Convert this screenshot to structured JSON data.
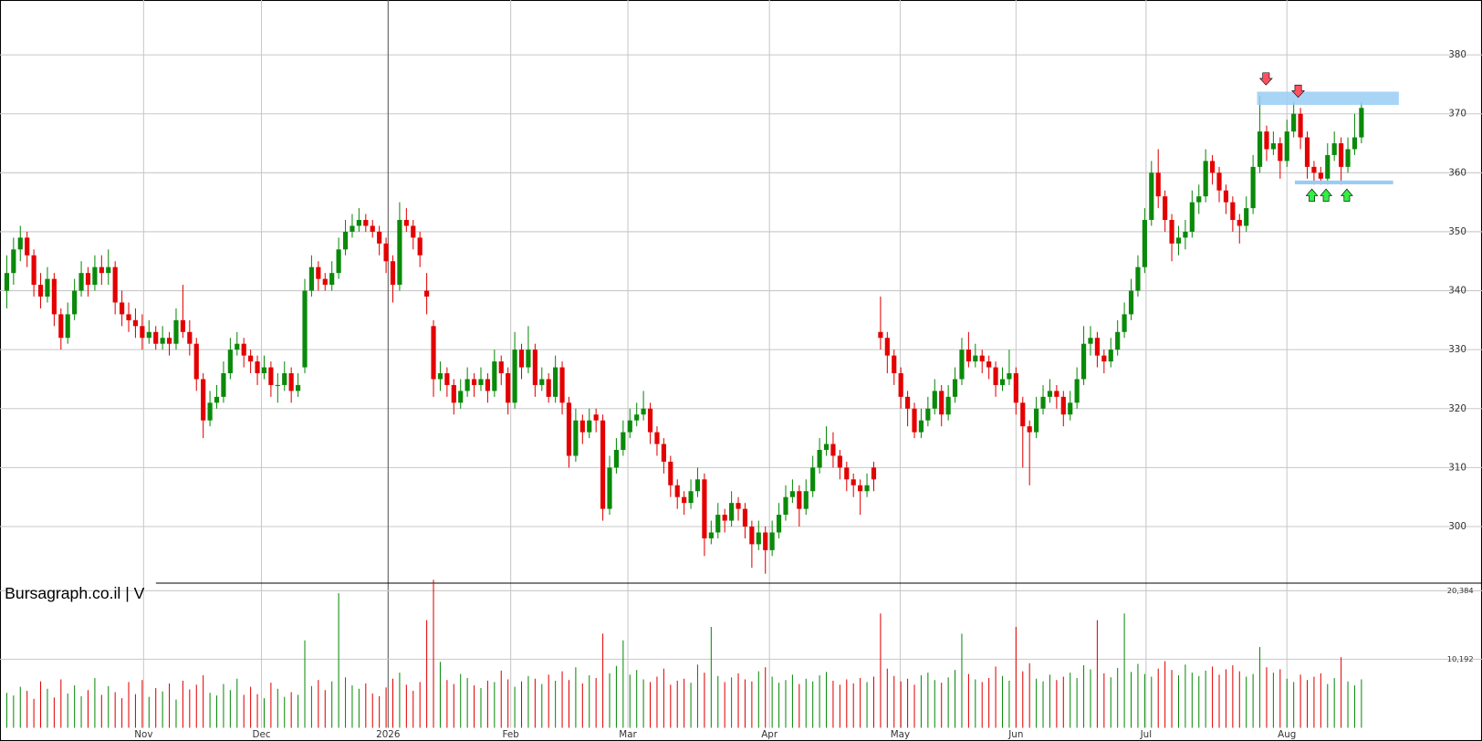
{
  "chart_data": {
    "type": "candlestick",
    "title": "Bursagraph.co.il | V",
    "up_color": "#0a8a0a",
    "down_color": "#e40000",
    "grid": true,
    "ylim": [
      290.4,
      389.3
    ],
    "yticks": [
      300,
      310,
      320,
      330,
      340,
      350,
      360,
      370,
      380
    ],
    "xlim": [
      -1,
      217.8
    ],
    "xticks": [
      {
        "value": 20.2,
        "label": "Nov"
      },
      {
        "value": 37.6,
        "label": "Dec"
      },
      {
        "value": 56.3,
        "label": "2026"
      },
      {
        "value": 74.4,
        "label": "Feb"
      },
      {
        "value": 91.7,
        "label": "Mar"
      },
      {
        "value": 112.6,
        "label": "Apr"
      },
      {
        "value": 131.9,
        "label": "May"
      },
      {
        "value": 149,
        "label": "Jun"
      },
      {
        "value": 168.2,
        "label": "Jul"
      },
      {
        "value": 189,
        "label": "Aug"
      }
    ],
    "ohlc": [
      [
        340,
        346,
        337,
        343
      ],
      [
        343,
        349,
        341,
        347
      ],
      [
        347,
        351,
        345,
        349
      ],
      [
        349,
        350,
        344,
        346
      ],
      [
        346,
        347,
        339,
        341
      ],
      [
        341,
        343,
        337,
        339
      ],
      [
        339,
        344,
        338,
        342
      ],
      [
        342,
        343,
        334,
        336
      ],
      [
        336,
        337,
        330,
        332
      ],
      [
        332,
        338,
        331,
        336
      ],
      [
        336,
        342,
        335,
        340
      ],
      [
        340,
        345,
        339,
        343
      ],
      [
        343,
        344,
        339,
        341
      ],
      [
        341,
        346,
        340,
        344
      ],
      [
        344,
        346,
        341,
        343
      ],
      [
        343,
        347,
        341,
        344
      ],
      [
        344,
        345,
        336,
        338
      ],
      [
        338,
        340,
        334,
        336
      ],
      [
        336,
        338,
        333,
        335
      ],
      [
        335,
        337,
        332,
        334
      ],
      [
        334,
        336,
        330,
        332
      ],
      [
        332,
        335,
        331,
        333
      ],
      [
        333,
        334,
        330,
        331
      ],
      [
        331,
        334,
        330,
        332
      ],
      [
        332,
        333,
        329,
        331
      ],
      [
        331,
        337,
        330,
        335
      ],
      [
        335,
        341,
        332,
        333
      ],
      [
        333,
        335,
        329,
        331
      ],
      [
        331,
        332,
        323,
        325
      ],
      [
        325,
        326,
        315,
        318
      ],
      [
        318,
        323,
        317,
        321
      ],
      [
        321,
        324,
        320,
        322
      ],
      [
        322,
        328,
        321,
        326
      ],
      [
        326,
        332,
        325,
        330
      ],
      [
        330,
        333,
        329,
        331
      ],
      [
        331,
        332,
        327,
        329
      ],
      [
        329,
        330,
        326,
        328
      ],
      [
        328,
        329,
        324,
        326
      ],
      [
        326,
        329,
        325,
        327
      ],
      [
        327,
        328,
        322,
        324
      ],
      [
        324,
        326,
        321,
        324
      ],
      [
        324,
        328,
        323,
        326
      ],
      [
        326,
        327,
        321,
        323
      ],
      [
        323,
        326,
        322,
        324
      ],
      [
        327,
        342,
        326,
        340
      ],
      [
        340,
        346,
        339,
        344
      ],
      [
        344,
        345,
        340,
        342
      ],
      [
        342,
        343,
        340,
        341
      ],
      [
        341,
        345,
        340,
        343
      ],
      [
        343,
        349,
        342,
        347
      ],
      [
        347,
        352,
        346,
        350
      ],
      [
        350,
        353,
        349,
        351
      ],
      [
        351,
        354,
        350,
        352
      ],
      [
        352,
        353,
        350,
        351
      ],
      [
        351,
        352,
        349,
        350
      ],
      [
        350,
        351,
        346,
        348
      ],
      [
        348,
        349,
        343,
        345
      ],
      [
        345,
        346,
        338,
        341
      ],
      [
        341,
        355,
        340,
        352
      ],
      [
        352,
        354,
        350,
        351
      ],
      [
        351,
        352,
        347,
        349
      ],
      [
        349,
        350,
        344,
        346
      ],
      [
        340,
        343,
        336,
        339
      ],
      [
        334,
        335,
        322,
        325
      ],
      [
        325,
        328,
        323,
        326
      ],
      [
        326,
        327,
        322,
        324
      ],
      [
        324,
        325,
        319,
        321
      ],
      [
        321,
        325,
        320,
        323
      ],
      [
        323,
        327,
        322,
        325
      ],
      [
        325,
        326,
        322,
        324
      ],
      [
        324,
        327,
        323,
        325
      ],
      [
        325,
        326,
        321,
        323
      ],
      [
        323,
        330,
        322,
        328
      ],
      [
        328,
        329,
        324,
        326
      ],
      [
        326,
        327,
        319,
        321
      ],
      [
        321,
        333,
        320,
        330
      ],
      [
        330,
        331,
        325,
        327
      ],
      [
        327,
        334,
        326,
        330
      ],
      [
        330,
        331,
        322,
        324
      ],
      [
        324,
        327,
        323,
        325
      ],
      [
        325,
        326,
        321,
        322
      ],
      [
        322,
        329,
        321,
        327
      ],
      [
        327,
        328,
        319,
        321
      ],
      [
        321,
        322,
        310,
        312
      ],
      [
        312,
        320,
        311,
        318
      ],
      [
        318,
        319,
        314,
        316
      ],
      [
        316,
        320,
        315,
        318
      ],
      [
        319,
        320,
        316,
        318
      ],
      [
        318,
        319,
        301,
        303
      ],
      [
        303,
        312,
        302,
        310
      ],
      [
        310,
        315,
        309,
        313
      ],
      [
        313,
        318,
        312,
        316
      ],
      [
        316,
        320,
        315,
        318
      ],
      [
        318,
        321,
        317,
        319
      ],
      [
        319,
        323,
        318,
        320
      ],
      [
        320,
        321,
        314,
        316
      ],
      [
        316,
        317,
        312,
        314
      ],
      [
        314,
        315,
        309,
        311
      ],
      [
        311,
        312,
        305,
        307
      ],
      [
        307,
        308,
        303,
        305
      ],
      [
        305,
        306,
        302,
        304
      ],
      [
        304,
        308,
        303,
        306
      ],
      [
        306,
        310,
        305,
        308
      ],
      [
        308,
        309,
        295,
        298
      ],
      [
        298,
        301,
        297,
        299
      ],
      [
        299,
        304,
        298,
        302
      ],
      [
        302,
        303,
        299,
        301
      ],
      [
        301,
        306,
        300,
        304
      ],
      [
        304,
        305,
        301,
        303
      ],
      [
        303,
        304,
        298,
        300
      ],
      [
        300,
        301,
        293,
        297
      ],
      [
        297,
        301,
        296,
        299
      ],
      [
        299,
        300,
        292,
        296
      ],
      [
        296,
        301,
        295,
        299
      ],
      [
        299,
        304,
        298,
        302
      ],
      [
        302,
        307,
        301,
        305
      ],
      [
        305,
        308,
        304,
        306
      ],
      [
        306,
        307,
        300,
        303
      ],
      [
        303,
        308,
        302,
        306
      ],
      [
        306,
        312,
        305,
        310
      ],
      [
        310,
        315,
        309,
        313
      ],
      [
        313,
        317,
        312,
        314
      ],
      [
        314,
        316,
        310,
        312
      ],
      [
        312,
        313,
        308,
        310
      ],
      [
        310,
        311,
        306,
        308
      ],
      [
        308,
        309,
        305,
        307
      ],
      [
        307,
        308,
        302,
        306
      ],
      [
        306,
        309,
        305,
        307
      ],
      [
        310,
        311,
        306,
        308
      ],
      [
        333,
        339,
        330,
        332
      ],
      [
        332,
        333,
        326,
        329
      ],
      [
        329,
        330,
        324,
        326
      ],
      [
        326,
        327,
        320,
        322
      ],
      [
        322,
        323,
        317,
        320
      ],
      [
        320,
        321,
        315,
        316
      ],
      [
        316,
        320,
        315,
        318
      ],
      [
        318,
        322,
        317,
        320
      ],
      [
        320,
        325,
        319,
        323
      ],
      [
        323,
        324,
        317,
        319
      ],
      [
        319,
        324,
        318,
        322
      ],
      [
        322,
        327,
        321,
        325
      ],
      [
        325,
        332,
        324,
        330
      ],
      [
        330,
        333,
        327,
        328
      ],
      [
        328,
        331,
        327,
        329
      ],
      [
        329,
        330,
        326,
        328
      ],
      [
        328,
        329,
        325,
        327
      ],
      [
        327,
        328,
        322,
        324
      ],
      [
        324,
        327,
        323,
        325
      ],
      [
        325,
        330,
        324,
        326
      ],
      [
        326,
        327,
        319,
        321
      ],
      [
        321,
        322,
        310,
        317
      ],
      [
        317,
        318,
        307,
        316
      ],
      [
        316,
        322,
        315,
        320
      ],
      [
        320,
        324,
        319,
        322
      ],
      [
        322,
        325,
        321,
        323
      ],
      [
        323,
        324,
        320,
        322
      ],
      [
        322,
        323,
        317,
        319
      ],
      [
        319,
        323,
        318,
        321
      ],
      [
        321,
        327,
        320,
        325
      ],
      [
        325,
        334,
        324,
        331
      ],
      [
        331,
        334,
        329,
        332
      ],
      [
        332,
        333,
        327,
        329
      ],
      [
        329,
        330,
        326,
        328
      ],
      [
        328,
        332,
        327,
        330
      ],
      [
        330,
        335,
        329,
        333
      ],
      [
        333,
        338,
        332,
        336
      ],
      [
        336,
        342,
        335,
        340
      ],
      [
        340,
        346,
        339,
        344
      ],
      [
        344,
        354,
        343,
        352
      ],
      [
        352,
        362,
        351,
        360
      ],
      [
        360,
        364,
        354,
        356
      ],
      [
        356,
        357,
        350,
        352
      ],
      [
        352,
        353,
        345,
        348
      ],
      [
        348,
        351,
        346,
        349
      ],
      [
        349,
        352,
        347,
        350
      ],
      [
        350,
        357,
        349,
        355
      ],
      [
        355,
        358,
        353,
        356
      ],
      [
        356,
        364,
        355,
        362
      ],
      [
        362,
        363,
        358,
        360
      ],
      [
        360,
        361,
        355,
        357
      ],
      [
        357,
        358,
        353,
        355
      ],
      [
        355,
        356,
        350,
        352
      ],
      [
        352,
        353,
        348,
        351
      ],
      [
        351,
        356,
        350,
        354
      ],
      [
        354,
        363,
        353,
        361
      ],
      [
        361,
        373,
        360,
        367
      ],
      [
        367,
        368,
        362,
        364
      ],
      [
        364,
        367,
        363,
        365
      ],
      [
        365,
        366,
        359,
        362
      ],
      [
        362,
        369,
        361,
        367
      ],
      [
        367,
        372,
        366,
        370
      ],
      [
        370,
        371,
        364,
        366
      ],
      [
        366,
        367,
        359,
        361
      ],
      [
        361,
        362,
        358,
        360
      ],
      [
        360,
        361,
        358,
        359
      ],
      [
        359,
        365,
        358,
        363
      ],
      [
        363,
        367,
        362,
        365
      ],
      [
        365,
        366,
        358,
        361
      ],
      [
        361,
        366,
        360,
        364
      ],
      [
        364,
        370,
        363,
        366
      ],
      [
        366,
        372,
        365,
        371
      ]
    ],
    "volume": {
      "ylim": [
        0,
        21509
      ],
      "yticks": [
        {
          "value": 20384,
          "label": "20,384"
        },
        {
          "value": 10192,
          "label": "10,192"
        }
      ],
      "values": [
        5200,
        4800,
        6100,
        5500,
        4300,
        6900,
        5800,
        4500,
        7200,
        5100,
        6300,
        4700,
        5600,
        7400,
        4900,
        6200,
        5300,
        4400,
        6800,
        5000,
        7100,
        4600,
        5900,
        5400,
        6600,
        4200,
        7000,
        5700,
        6400,
        7800,
        5200,
        4800,
        6500,
        5600,
        7300,
        4900,
        6100,
        5000,
        4400,
        6700,
        5800,
        4600,
        5300,
        4900,
        13000,
        6200,
        7100,
        5600,
        6900,
        20000,
        7500,
        6300,
        5800,
        6600,
        5100,
        4700,
        6000,
        7300,
        8200,
        6400,
        5500,
        6800,
        16000,
        22000,
        9800,
        7100,
        6500,
        8000,
        7400,
        6300,
        5900,
        7000,
        6800,
        8500,
        7200,
        6100,
        6900,
        7700,
        7300,
        6500,
        7900,
        7000,
        8400,
        7100,
        9000,
        6600,
        7800,
        7400,
        14000,
        8100,
        9200,
        13000,
        7900,
        8600,
        7200,
        6800,
        7600,
        8800,
        6400,
        7000,
        7300,
        6700,
        9400,
        8200,
        15000,
        7700,
        6800,
        7500,
        8100,
        7200,
        6900,
        8400,
        9000,
        7600,
        6700,
        7100,
        7900,
        6500,
        7300,
        6900,
        7800,
        8300,
        7000,
        6400,
        7200,
        6600,
        7400,
        6800,
        7600,
        17000,
        8800,
        7700,
        6900,
        7300,
        6400,
        7800,
        8200,
        7100,
        6700,
        7500,
        8600,
        14000,
        8000,
        7200,
        6800,
        7400,
        9100,
        7700,
        7000,
        15000,
        8400,
        9600,
        7300,
        6900,
        7900,
        7100,
        7600,
        8200,
        7400,
        9300,
        8700,
        16000,
        8100,
        7500,
        8900,
        17000,
        8300,
        9500,
        8000,
        7600,
        8800,
        9900,
        8600,
        7800,
        9400,
        8200,
        7700,
        8500,
        9100,
        7900,
        8700,
        9300,
        8400,
        7600,
        8000,
        12000,
        9000,
        8200,
        8700,
        7300,
        6800,
        7900,
        7100,
        7600,
        8100,
        6500,
        7400,
        10500,
        6900,
        6300,
        7200
      ]
    }
  }
}
